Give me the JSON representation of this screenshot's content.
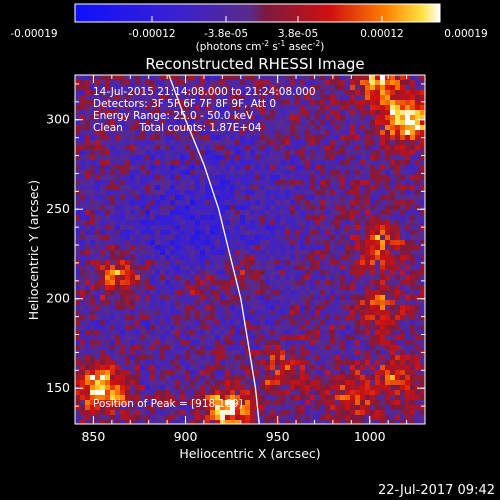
{
  "colorbar": {
    "ticks": [
      "-0.00019",
      "-0.00012",
      "-3.8e-05",
      "3.8e-05",
      "0.00012",
      "0.00019"
    ],
    "unit_main": "(photons cm",
    "unit_exp1": "-2",
    "unit_mid": " s",
    "unit_exp2": "-1",
    "unit_tail": " asec",
    "unit_exp3": "-2",
    "unit_close": ")"
  },
  "info": {
    "time": "14-Jul-2015 21:14:08.000 to 21:24:08.000",
    "detectors": "Detectors: 3F 5F 6F 7F 8F 9F, Att 0",
    "energy": "Energy Range: 25.0 - 50.0 keV",
    "clean": "Clean     Total counts: 1.87E+04",
    "peak": "Position of Peak = [918,169]"
  },
  "footer": {
    "date": "22-Jul-2017 09:42"
  },
  "chart_data": {
    "type": "heatmap",
    "title": "Reconstructed RHESSI Image",
    "xlabel": "Heliocentric X (arcsec)",
    "ylabel": "Heliocentric Y (arcsec)",
    "xlim": [
      840,
      1030
    ],
    "ylim": [
      130,
      325
    ],
    "x_ticks": [
      850,
      900,
      950,
      1000
    ],
    "y_ticks": [
      150,
      200,
      250,
      300
    ],
    "clim": [
      -0.00019,
      0.00019
    ],
    "colormap": "blue-purple-red-yellow-white",
    "peak": [
      918,
      169
    ],
    "limb": [
      [
        891,
        325
      ],
      [
        900,
        300
      ],
      [
        910,
        275
      ],
      [
        918,
        250
      ],
      [
        924,
        225
      ],
      [
        930,
        200
      ],
      [
        934,
        175
      ],
      [
        938,
        150
      ],
      [
        940,
        130
      ]
    ],
    "sources": [
      {
        "x": 855,
        "y": 150,
        "value": 0.00019
      },
      {
        "x": 922,
        "y": 138,
        "value": 0.00019
      },
      {
        "x": 865,
        "y": 212,
        "value": 0.00016
      },
      {
        "x": 1020,
        "y": 300,
        "value": 0.00019
      },
      {
        "x": 1005,
        "y": 320,
        "value": 0.00015
      },
      {
        "x": 1005,
        "y": 230,
        "value": 0.00012
      },
      {
        "x": 1005,
        "y": 195,
        "value": 0.0001
      },
      {
        "x": 1015,
        "y": 155,
        "value": 0.0001
      },
      {
        "x": 952,
        "y": 160,
        "value": 9e-05
      },
      {
        "x": 990,
        "y": 145,
        "value": 0.0001
      },
      {
        "x": 930,
        "y": 215,
        "value": 8e-05
      },
      {
        "x": 905,
        "y": 205,
        "value": 8e-05
      }
    ],
    "colors": {
      "frame": "#ffffff",
      "limb": "#ffffff"
    }
  }
}
